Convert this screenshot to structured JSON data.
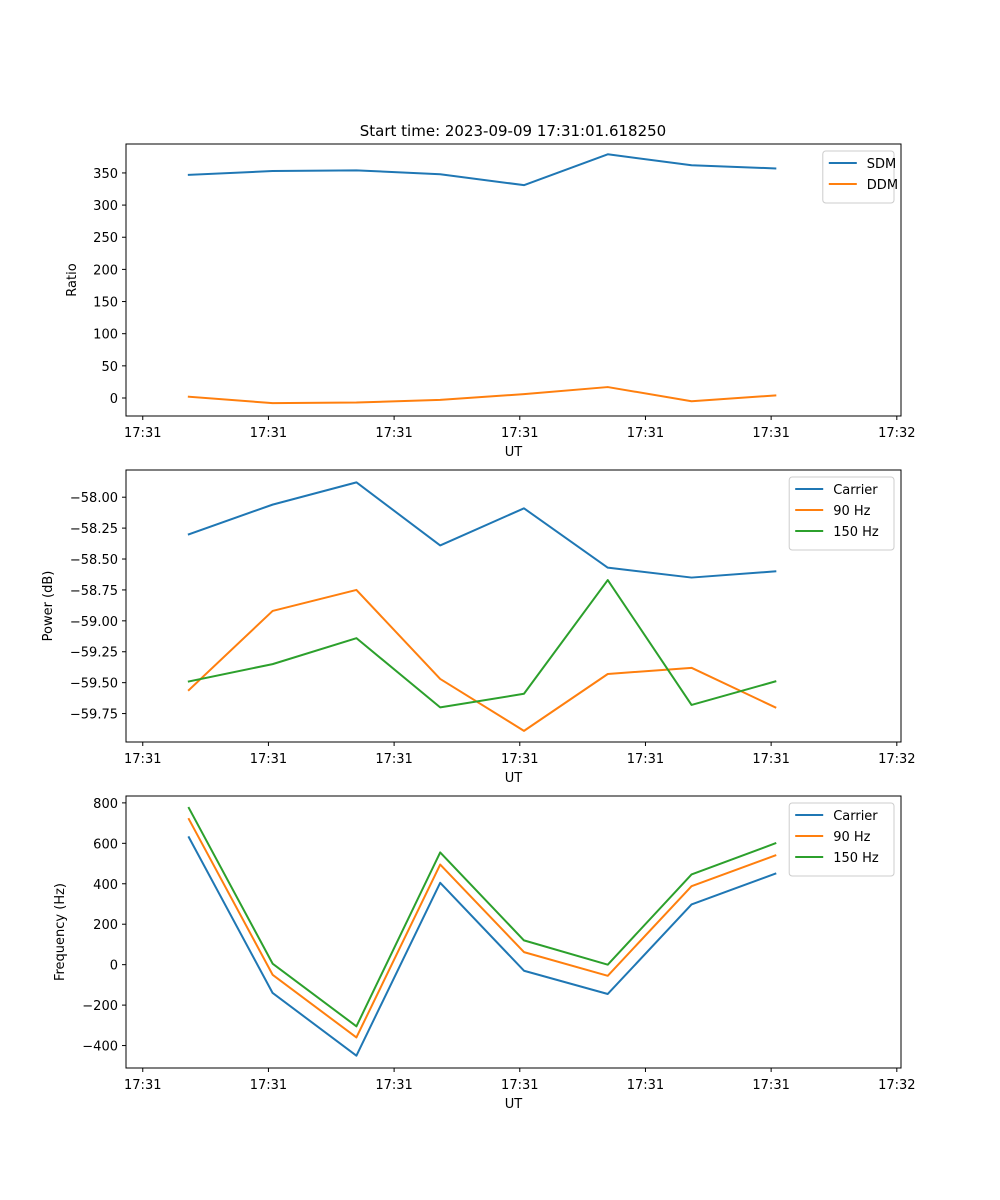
{
  "figure": {
    "title": "Start time: 2023-09-09 17:31:01.618250"
  },
  "chart_data": [
    {
      "type": "line",
      "title": "Start time: 2023-09-09 17:31:01.618250",
      "xlabel": "UT",
      "ylabel": "Ratio",
      "x": [
        0.0,
        0.5,
        1.0,
        1.5,
        2.0,
        2.5,
        3.0,
        3.5
      ],
      "xlim": [
        -0.375,
        4.25
      ],
      "xticks": [
        -0.275,
        0.475,
        1.225,
        1.975,
        2.725,
        3.475,
        4.225
      ],
      "xtick_labels": [
        "17:31",
        "17:31",
        "17:31",
        "17:31",
        "17:31",
        "17:31",
        "17:32"
      ],
      "ylim": [
        -28,
        395
      ],
      "yticks": [
        0,
        50,
        100,
        150,
        200,
        250,
        300,
        350
      ],
      "ytick_labels": [
        "0",
        "50",
        "100",
        "150",
        "200",
        "250",
        "300",
        "350"
      ],
      "legend_location": "upper right",
      "series": [
        {
          "name": "SDM",
          "color": "#1f77b4",
          "values": [
            347,
            353,
            354,
            348,
            331,
            379,
            362,
            357
          ]
        },
        {
          "name": "DDM",
          "color": "#ff7f0e",
          "values": [
            2,
            -8,
            -7,
            -3,
            6,
            17,
            -5,
            4
          ]
        }
      ]
    },
    {
      "type": "line",
      "xlabel": "UT",
      "ylabel": "Power (dB)",
      "x": [
        0.0,
        0.5,
        1.0,
        1.5,
        2.0,
        2.5,
        3.0,
        3.5
      ],
      "xlim": [
        -0.375,
        4.25
      ],
      "xticks": [
        -0.275,
        0.475,
        1.225,
        1.975,
        2.725,
        3.475,
        4.225
      ],
      "xtick_labels": [
        "17:31",
        "17:31",
        "17:31",
        "17:31",
        "17:31",
        "17:31",
        "17:32"
      ],
      "ylim": [
        -59.98,
        -57.78
      ],
      "yticks": [
        -59.75,
        -59.5,
        -59.25,
        -59.0,
        -58.75,
        -58.5,
        -58.25,
        -58.0
      ],
      "ytick_labels": [
        "−59.75",
        "−59.50",
        "−59.25",
        "−59.00",
        "−58.75",
        "−58.50",
        "−58.25",
        "−58.00"
      ],
      "legend_location": "upper right",
      "series": [
        {
          "name": "Carrier",
          "color": "#1f77b4",
          "values": [
            -58.3,
            -58.06,
            -57.88,
            -58.39,
            -58.09,
            -58.57,
            -58.65,
            -58.6
          ]
        },
        {
          "name": "90 Hz",
          "color": "#ff7f0e",
          "values": [
            -59.56,
            -58.92,
            -58.75,
            -59.47,
            -59.89,
            -59.43,
            -59.38,
            -59.7
          ]
        },
        {
          "name": "150 Hz",
          "color": "#2ca02c",
          "values": [
            -59.49,
            -59.35,
            -59.14,
            -59.7,
            -59.59,
            -58.67,
            -59.68,
            -59.49
          ]
        }
      ]
    },
    {
      "type": "line",
      "xlabel": "UT",
      "ylabel": "Frequency (Hz)",
      "x": [
        0.0,
        0.5,
        1.0,
        1.5,
        2.0,
        2.5,
        3.0,
        3.5
      ],
      "xlim": [
        -0.375,
        4.25
      ],
      "xticks": [
        -0.275,
        0.475,
        1.225,
        1.975,
        2.725,
        3.475,
        4.225
      ],
      "xtick_labels": [
        "17:31",
        "17:31",
        "17:31",
        "17:31",
        "17:31",
        "17:31",
        "17:32"
      ],
      "ylim": [
        -511,
        834
      ],
      "yticks": [
        -400,
        -200,
        0,
        200,
        400,
        600,
        800
      ],
      "ytick_labels": [
        "−400",
        "−200",
        "0",
        "200",
        "400",
        "600",
        "800"
      ],
      "legend_location": "upper right",
      "series": [
        {
          "name": "Carrier",
          "color": "#1f77b4",
          "values": [
            630,
            -140,
            -450,
            405,
            -30,
            -145,
            298,
            450
          ]
        },
        {
          "name": "90 Hz",
          "color": "#ff7f0e",
          "values": [
            720,
            -50,
            -360,
            495,
            62,
            -55,
            388,
            540
          ]
        },
        {
          "name": "150 Hz",
          "color": "#2ca02c",
          "values": [
            775,
            5,
            -305,
            555,
            120,
            0,
            446,
            600
          ]
        }
      ]
    }
  ]
}
